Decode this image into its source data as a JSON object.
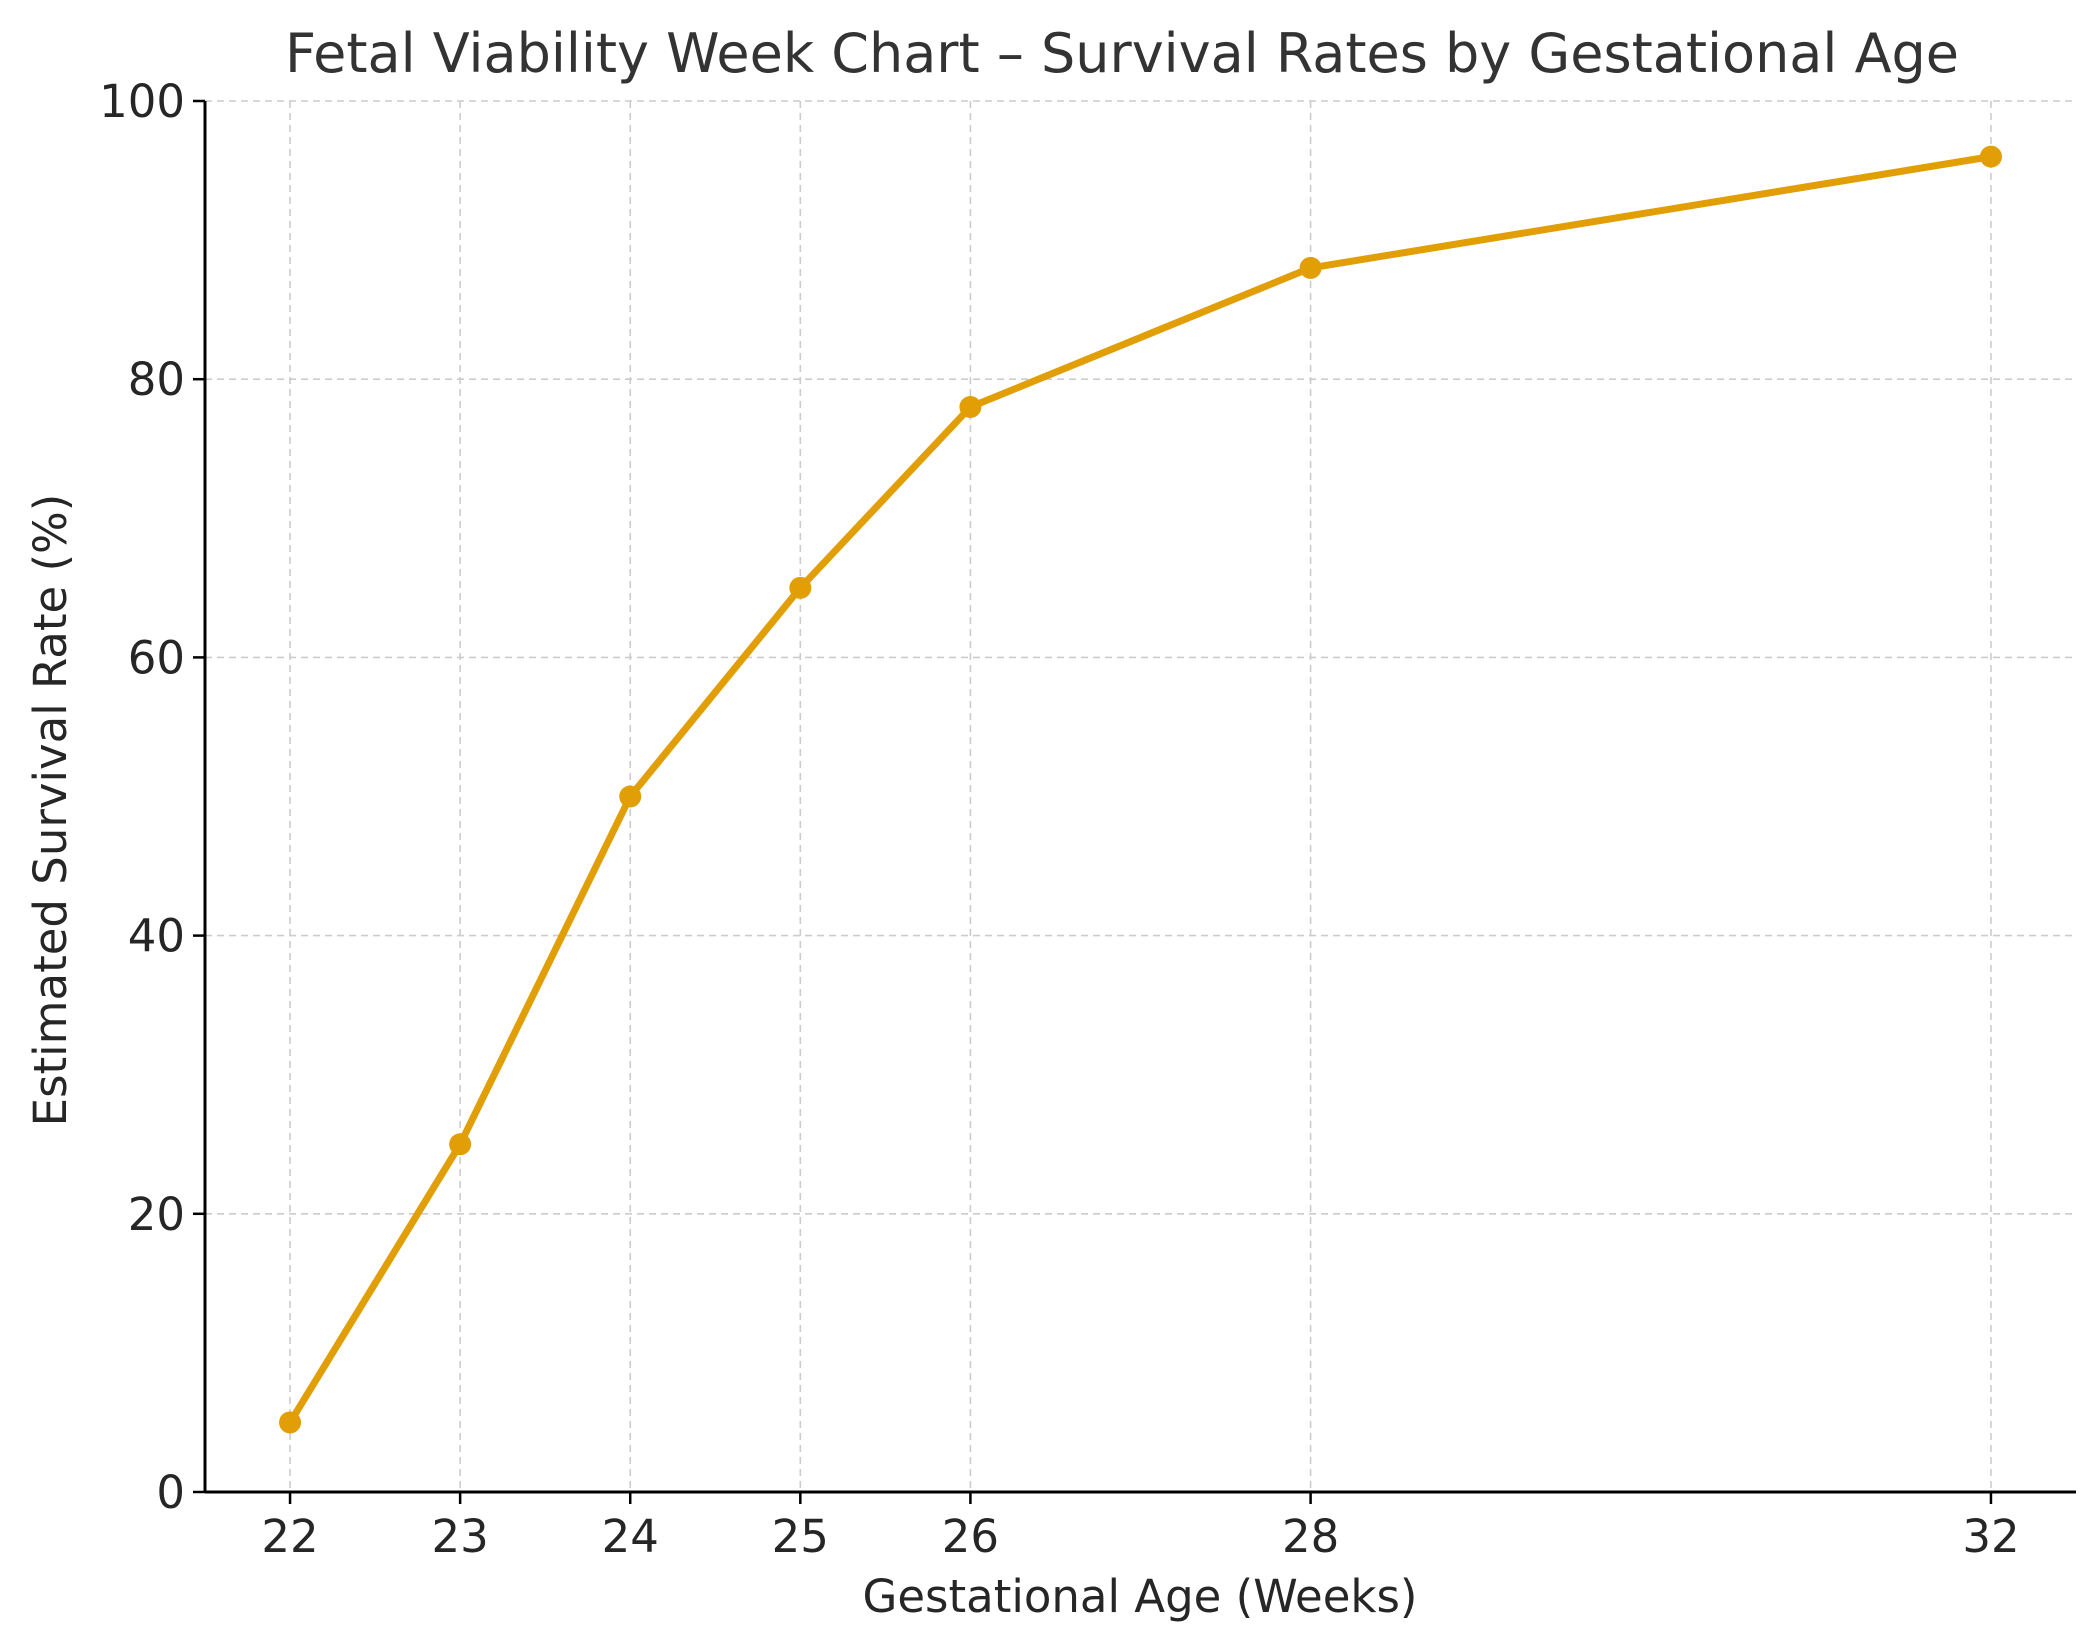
{
  "chart_data": {
    "type": "line",
    "title": "Fetal Viability Week Chart – Survival Rates by Gestational Age",
    "xlabel": "Gestational Age (Weeks)",
    "ylabel": "Estimated Survival Rate (%)",
    "x": [
      22,
      23,
      24,
      25,
      26,
      28,
      32
    ],
    "x_ticks": [
      22,
      23,
      24,
      25,
      26,
      28,
      32
    ],
    "y_ticks": [
      0,
      20,
      40,
      60,
      80,
      100
    ],
    "ylim": [
      0,
      100
    ],
    "xlim": [
      21.5,
      32.5
    ],
    "grid": true,
    "legend": "none",
    "series": [
      {
        "values": [
          5,
          25,
          50,
          65,
          78,
          88,
          96
        ],
        "color": "#E19E05",
        "marker": "circle"
      }
    ],
    "colors": {
      "line": "#E19E05",
      "grid": "#CCCCCC",
      "axis": "#000000",
      "text": "#262626",
      "title": "#333333"
    }
  }
}
